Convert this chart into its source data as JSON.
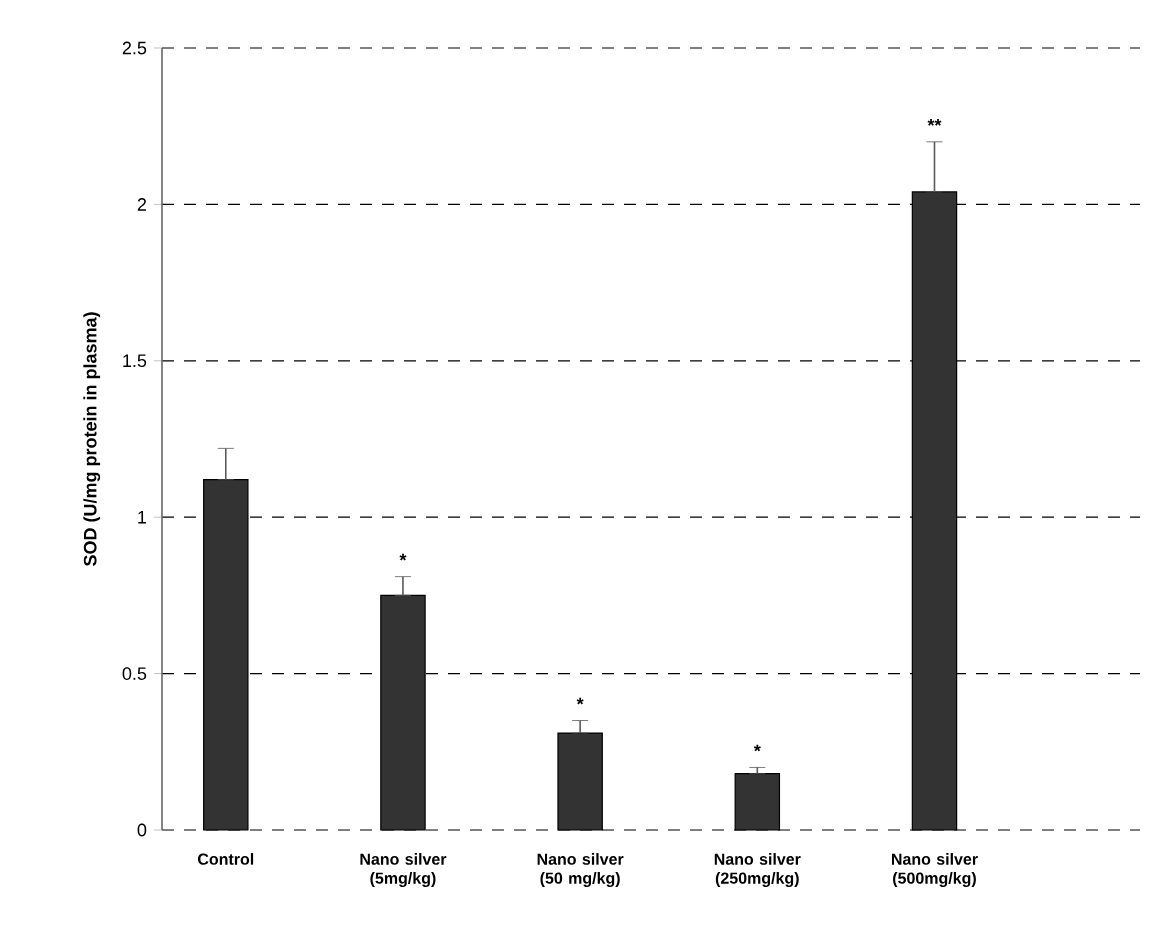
{
  "chart_data": {
    "type": "bar",
    "ylabel": "SOD (U/mg protein in plasma)",
    "categories": [
      "Control",
      "Nano silver (5mg/kg)",
      "Nano silver (50 mg/kg)",
      "Nano silver (250mg/kg)",
      "Nano silver (500mg/kg)"
    ],
    "values": [
      1.12,
      0.75,
      0.31,
      0.18,
      2.04
    ],
    "errors": [
      [
        1.12,
        1.22
      ],
      [
        0.75,
        0.81
      ],
      [
        0.31,
        0.35
      ],
      [
        0.18,
        0.2
      ],
      [
        2.04,
        2.2
      ]
    ],
    "color": "#333333",
    "ylim": [
      0,
      2.5
    ],
    "yticks": [
      0,
      0.5,
      1,
      1.5,
      2,
      2.5
    ],
    "grid": "y",
    "annotations": [
      {
        "text": "*",
        "x": "Nano silver (5mg/kg)",
        "y": 0.81
      },
      {
        "text": "*",
        "x": "Nano silver (50 mg/kg)",
        "y": 0.35
      },
      {
        "text": "*",
        "x": "Nano silver (250mg/kg)",
        "y": 0.2
      },
      {
        "text": "**",
        "x": "Nano silver (500mg/kg)",
        "y": 2.2
      }
    ]
  }
}
